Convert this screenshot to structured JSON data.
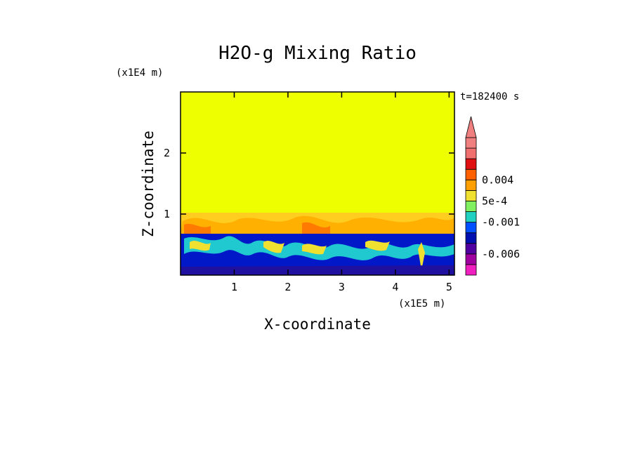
{
  "chart_data": {
    "type": "heatmap",
    "title": "H2O-g Mixing Ratio",
    "xlabel": "X-coordinate",
    "ylabel": "Z-coordinate",
    "x_scale_label": "(x1E5 m)",
    "y_scale_label": "(x1E4 m)",
    "time_label": "t=182400 s",
    "xlim": [
      0,
      5.1
    ],
    "ylim": [
      0,
      3
    ],
    "x_ticks": [
      1,
      2,
      3,
      4,
      5
    ],
    "y_ticks": [
      1,
      2
    ],
    "colorbar": {
      "labels": [
        {
          "text": "0.004",
          "level": 9
        },
        {
          "text": "5e-4",
          "level": 7
        },
        {
          "text": "-0.001",
          "level": 5
        },
        {
          "text": "-0.006",
          "level": 2
        }
      ],
      "colors": [
        "#f020c0",
        "#a000a0",
        "#5000a0",
        "#0010b0",
        "#0050ff",
        "#20d0c0",
        "#80f060",
        "#f0e030",
        "#ffa000",
        "#ff6000",
        "#e01010",
        "#f07070",
        "#f08080"
      ],
      "extend": "max"
    },
    "regions": [
      {
        "name": "upper",
        "z_range": [
          1.0,
          3.0
        ],
        "color": "#eeff00"
      },
      {
        "name": "mid-band",
        "z_range": [
          0.7,
          1.0
        ],
        "color": "#ffcc20"
      },
      {
        "name": "lower",
        "z_range": [
          0.0,
          0.7
        ],
        "color": "#0018c8"
      }
    ]
  }
}
